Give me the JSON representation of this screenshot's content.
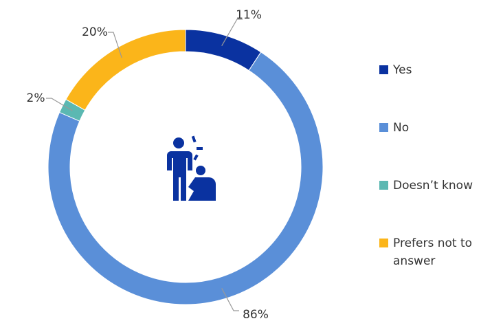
{
  "chart_data": {
    "type": "donut",
    "categories": [
      "Yes",
      "No",
      "Doesn’t know",
      "Prefers not to answer"
    ],
    "values": [
      11,
      86,
      2,
      20
    ],
    "value_labels": [
      "11%",
      "86%",
      "2%",
      "20%"
    ],
    "colors": [
      "#0a32a0",
      "#5a8fd8",
      "#5bb8b2",
      "#fbb51a"
    ],
    "legend": "right"
  }
}
